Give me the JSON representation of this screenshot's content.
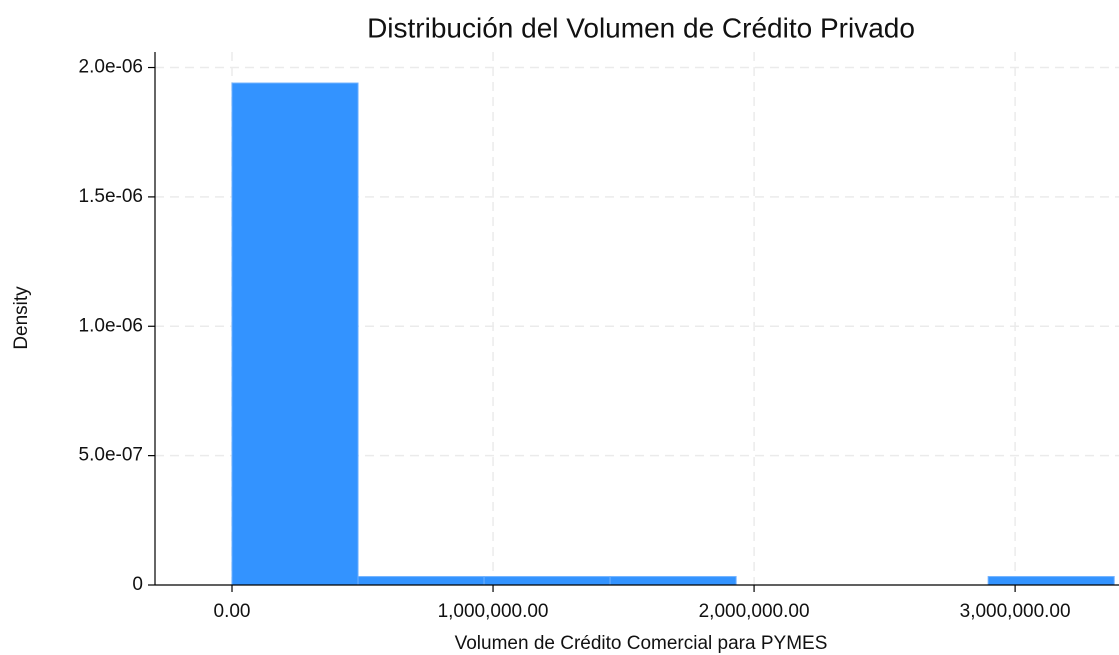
{
  "chart_data": {
    "type": "histogram",
    "title": "Distribución del Volumen de Crédito Privado",
    "xlabel": "Volumen de Crédito Comercial para PYMES",
    "ylabel": "Density",
    "bins": [
      0,
      482800,
      965600,
      1448400,
      1931200,
      2414000,
      2896800,
      3379600
    ],
    "values": [
      1.94e-06,
      3.26e-08,
      3.26e-08,
      3.26e-08,
      0,
      0,
      3.26e-08
    ],
    "color": "#3393ff",
    "xlim": [
      -295000,
      3398000
    ],
    "ylim": [
      0,
      2.06e-06
    ],
    "xticks": [
      {
        "value": 0,
        "label": "0.00"
      },
      {
        "value": 1000000,
        "label": "1,000,000.00"
      },
      {
        "value": 2000000,
        "label": "2,000,000.00"
      },
      {
        "value": 3000000,
        "label": "3,000,000.00"
      }
    ],
    "yticks": [
      0,
      {
        "value": 5e-07,
        "label": "5.0e-07"
      },
      {
        "value": 1e-06,
        "label": "1.0e-06"
      },
      {
        "value": 1.5e-06,
        "label": "1.5e-06"
      },
      {
        "value": 2e-06,
        "label": "2.0e-06"
      }
    ],
    "grid": true
  }
}
